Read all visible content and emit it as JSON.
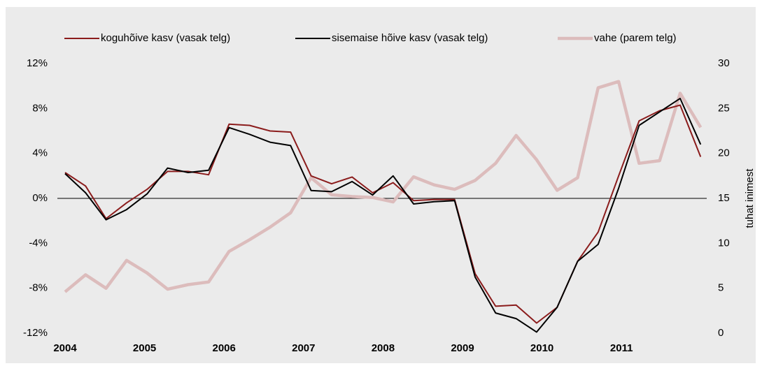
{
  "chart_data": {
    "type": "line",
    "categories": [
      "2004",
      null,
      null,
      null,
      "2005",
      null,
      null,
      null,
      "2006",
      null,
      null,
      null,
      "2007",
      null,
      null,
      null,
      "2008",
      null,
      null,
      null,
      "2009",
      null,
      null,
      null,
      "2010",
      null,
      null,
      null,
      "2011",
      null,
      null,
      null
    ],
    "series": [
      {
        "name": "koguhõive kasv (vasak telg)",
        "color": "#8b1c1c",
        "values": [
          2.3,
          1.1,
          -1.8,
          -0.4,
          0.8,
          2.4,
          2.4,
          2.1,
          6.6,
          6.5,
          6.0,
          5.9,
          2.0,
          1.3,
          1.9,
          0.5,
          1.4,
          -0.2,
          -0.1,
          -0.1,
          -6.7,
          -9.6,
          -9.5,
          -11.1,
          -9.7,
          -5.6,
          -3.0,
          2.0,
          6.9,
          7.8,
          8.3,
          3.7
        ]
      },
      {
        "name": "sisemaise hõive kasv (vasak telg)",
        "color": "#000000",
        "values": [
          2.2,
          0.5,
          -1.9,
          -1.0,
          0.4,
          2.7,
          2.3,
          2.5,
          6.3,
          5.7,
          5.0,
          4.7,
          0.7,
          0.6,
          1.5,
          0.3,
          2.0,
          -0.5,
          -0.3,
          -0.2,
          -7.0,
          -10.2,
          -10.7,
          -11.9,
          -9.7,
          -5.6,
          -4.1,
          0.9,
          6.5,
          7.7,
          8.9,
          4.8
        ]
      },
      {
        "name": "vahe (parem telg)",
        "color": "#dcbcbc",
        "axis": "y2",
        "values": [
          4.6,
          6.5,
          5.0,
          8.1,
          6.7,
          4.9,
          5.4,
          5.7,
          9.1,
          10.4,
          11.8,
          13.4,
          17.3,
          15.4,
          15.2,
          15.1,
          14.6,
          17.4,
          16.5,
          16.0,
          17.0,
          18.9,
          22.0,
          19.3,
          15.9,
          17.3,
          27.3,
          28.0,
          18.9,
          19.2,
          26.7,
          22.9
        ]
      }
    ],
    "ylim": [
      -12,
      12
    ],
    "yticks": [
      {
        "value": -12,
        "label": "-12%"
      },
      {
        "value": -8,
        "label": "-8%"
      },
      {
        "value": -4,
        "label": "-4%"
      },
      {
        "value": 0,
        "label": "0%"
      },
      {
        "value": 4,
        "label": "4%"
      },
      {
        "value": 8,
        "label": "8%"
      },
      {
        "value": 12,
        "label": "12%"
      }
    ],
    "y2lim": [
      0,
      30
    ],
    "y2ticks": [
      0,
      5,
      10,
      15,
      20,
      25,
      30
    ],
    "y2label": "tuhat inimest",
    "legend": "top"
  }
}
